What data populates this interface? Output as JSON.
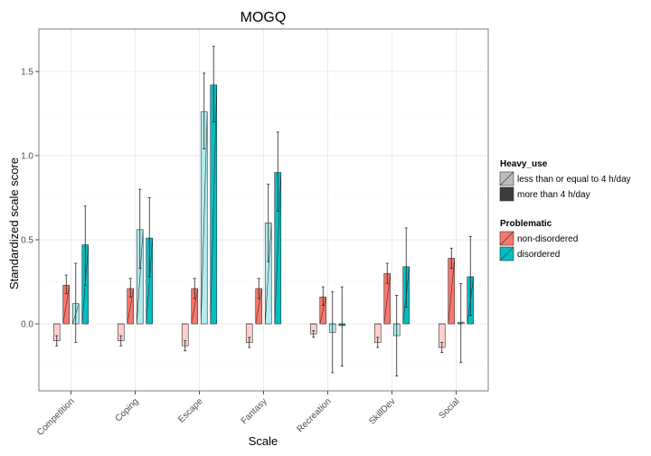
{
  "chart_data": {
    "type": "bar",
    "title": "MOGQ",
    "xlabel": "Scale",
    "ylabel": "Standardized scale score",
    "categories": [
      "Competition",
      "Coping",
      "Escape",
      "Fantasy",
      "Recreation",
      "SkillDev",
      "Social"
    ],
    "ylim": [
      -0.4,
      1.75
    ],
    "yticks": [
      0.0,
      0.5,
      1.0,
      1.5
    ],
    "ytick_labels": [
      "0.0",
      "0.5",
      "1.0",
      "1.5"
    ],
    "grid": true,
    "legend_position": "right",
    "legends": [
      {
        "title": "Heavy_use",
        "entries": [
          "less than or equal to 4 h/day",
          "more than 4 h/day"
        ]
      },
      {
        "title": "Problematic",
        "entries": [
          "non-disordered",
          "disordered"
        ]
      }
    ],
    "series": [
      {
        "heavy_use": "less than or equal to 4 h/day",
        "problematic": "non-disordered",
        "values": [
          -0.1,
          -0.1,
          -0.13,
          -0.11,
          -0.06,
          -0.11,
          -0.14
        ],
        "error": [
          [
            -0.13,
            -0.07
          ],
          [
            -0.13,
            -0.07
          ],
          [
            -0.16,
            -0.1
          ],
          [
            -0.14,
            -0.08
          ],
          [
            -0.08,
            -0.04
          ],
          [
            -0.14,
            -0.08
          ],
          [
            -0.17,
            -0.11
          ]
        ]
      },
      {
        "heavy_use": "more than 4 h/day",
        "problematic": "non-disordered",
        "values": [
          0.23,
          0.21,
          0.21,
          0.21,
          0.16,
          0.3,
          0.39
        ],
        "error": [
          [
            0.18,
            0.29
          ],
          [
            0.16,
            0.27
          ],
          [
            0.15,
            0.27
          ],
          [
            0.15,
            0.27
          ],
          [
            0.11,
            0.22
          ],
          [
            0.24,
            0.36
          ],
          [
            0.33,
            0.45
          ]
        ]
      },
      {
        "heavy_use": "less than or equal to 4 h/day",
        "problematic": "disordered",
        "values": [
          0.12,
          0.56,
          1.26,
          0.6,
          -0.05,
          -0.07,
          0.01
        ],
        "error": [
          [
            -0.11,
            0.36
          ],
          [
            0.33,
            0.8
          ],
          [
            1.04,
            1.49
          ],
          [
            0.37,
            0.83
          ],
          [
            -0.29,
            0.19
          ],
          [
            -0.31,
            0.17
          ],
          [
            -0.23,
            0.24
          ]
        ]
      },
      {
        "heavy_use": "more than 4 h/day",
        "problematic": "disordered",
        "values": [
          0.47,
          0.51,
          1.42,
          0.9,
          -0.01,
          0.34,
          0.28
        ],
        "error": [
          [
            0.23,
            0.7
          ],
          [
            0.28,
            0.75
          ],
          [
            1.2,
            1.65
          ],
          [
            0.67,
            1.14
          ],
          [
            -0.25,
            0.22
          ],
          [
            0.1,
            0.57
          ],
          [
            0.05,
            0.52
          ]
        ]
      }
    ]
  },
  "colors": {
    "panel_border": "#7f7f7f",
    "grid": "#ebebeb",
    "axis_tick": "#4d4d4d",
    "salmon": "#f8766d",
    "salmon_light": "#fbd0cc",
    "teal": "#00bfc4",
    "teal_light": "#b2eced",
    "light_fill": "#bdbdbd",
    "dark_fill": "#3c3c3c"
  }
}
